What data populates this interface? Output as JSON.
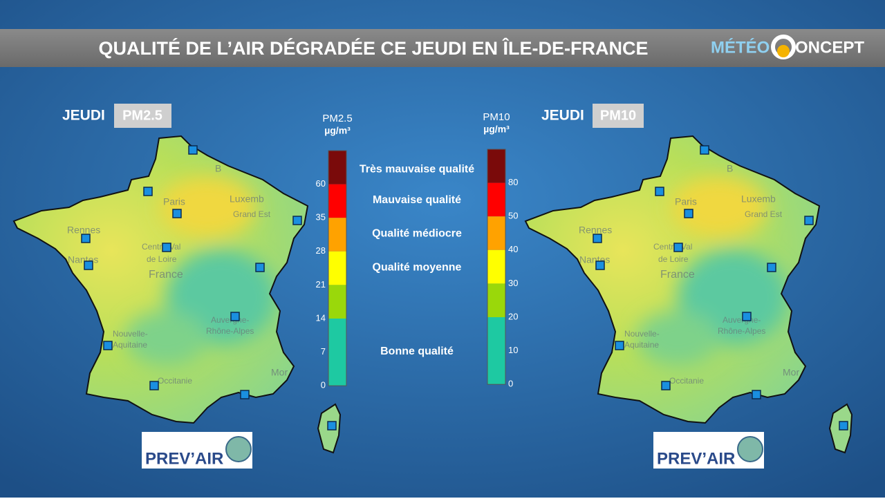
{
  "header": {
    "title": "QUALITÉ DE L’AIR DÉGRADÉE CE JEUDI EN ÎLE-DE-FRANCE",
    "logo": {
      "part1": "MÉTÉO",
      "part2": "ONCEPT"
    }
  },
  "maps": [
    {
      "day": "JEUDI",
      "pollutant": "PM2.5",
      "credit": "PREV’AIR"
    },
    {
      "day": "JEUDI",
      "pollutant": "PM10",
      "credit": "PREV’AIR"
    }
  ],
  "map_labels": {
    "paris": "Paris",
    "rennes": "Rennes",
    "nantes": "Nantes",
    "luxembourg": "Luxemb",
    "grand_est": "Grand Est",
    "centre": "Centre-Val",
    "centre2": "de Loire",
    "france": "France",
    "aquitaine": "Nouvelle-",
    "aquitaine2": "Aquitaine",
    "auvergne": "Auvergne-",
    "auvergne2": "Rhône-Alpes",
    "occitanie": "Occitanie",
    "monaco": "Mor",
    "belgium": "B"
  },
  "legend": {
    "scales": [
      {
        "name": "PM2.5",
        "unit": "µg/m³",
        "ticks": [
          0,
          7,
          14,
          21,
          28,
          35,
          60
        ]
      },
      {
        "name": "PM10",
        "unit": "µg/m³",
        "ticks": [
          0,
          10,
          20,
          30,
          40,
          50,
          80
        ]
      }
    ],
    "bands": [
      {
        "label": "Très mauvaise qualité",
        "color": "#7a0a0a"
      },
      {
        "label": "Mauvaise qualité",
        "color": "#ff0000"
      },
      {
        "label": "Qualité médiocre",
        "color": "#ffa200"
      },
      {
        "label": "Qualité moyenne",
        "color": "#ffff00"
      },
      {
        "label": null,
        "color": "#9ad80a"
      },
      {
        "label": "Bonne qualité",
        "color": "#1ec9a2"
      }
    ]
  }
}
